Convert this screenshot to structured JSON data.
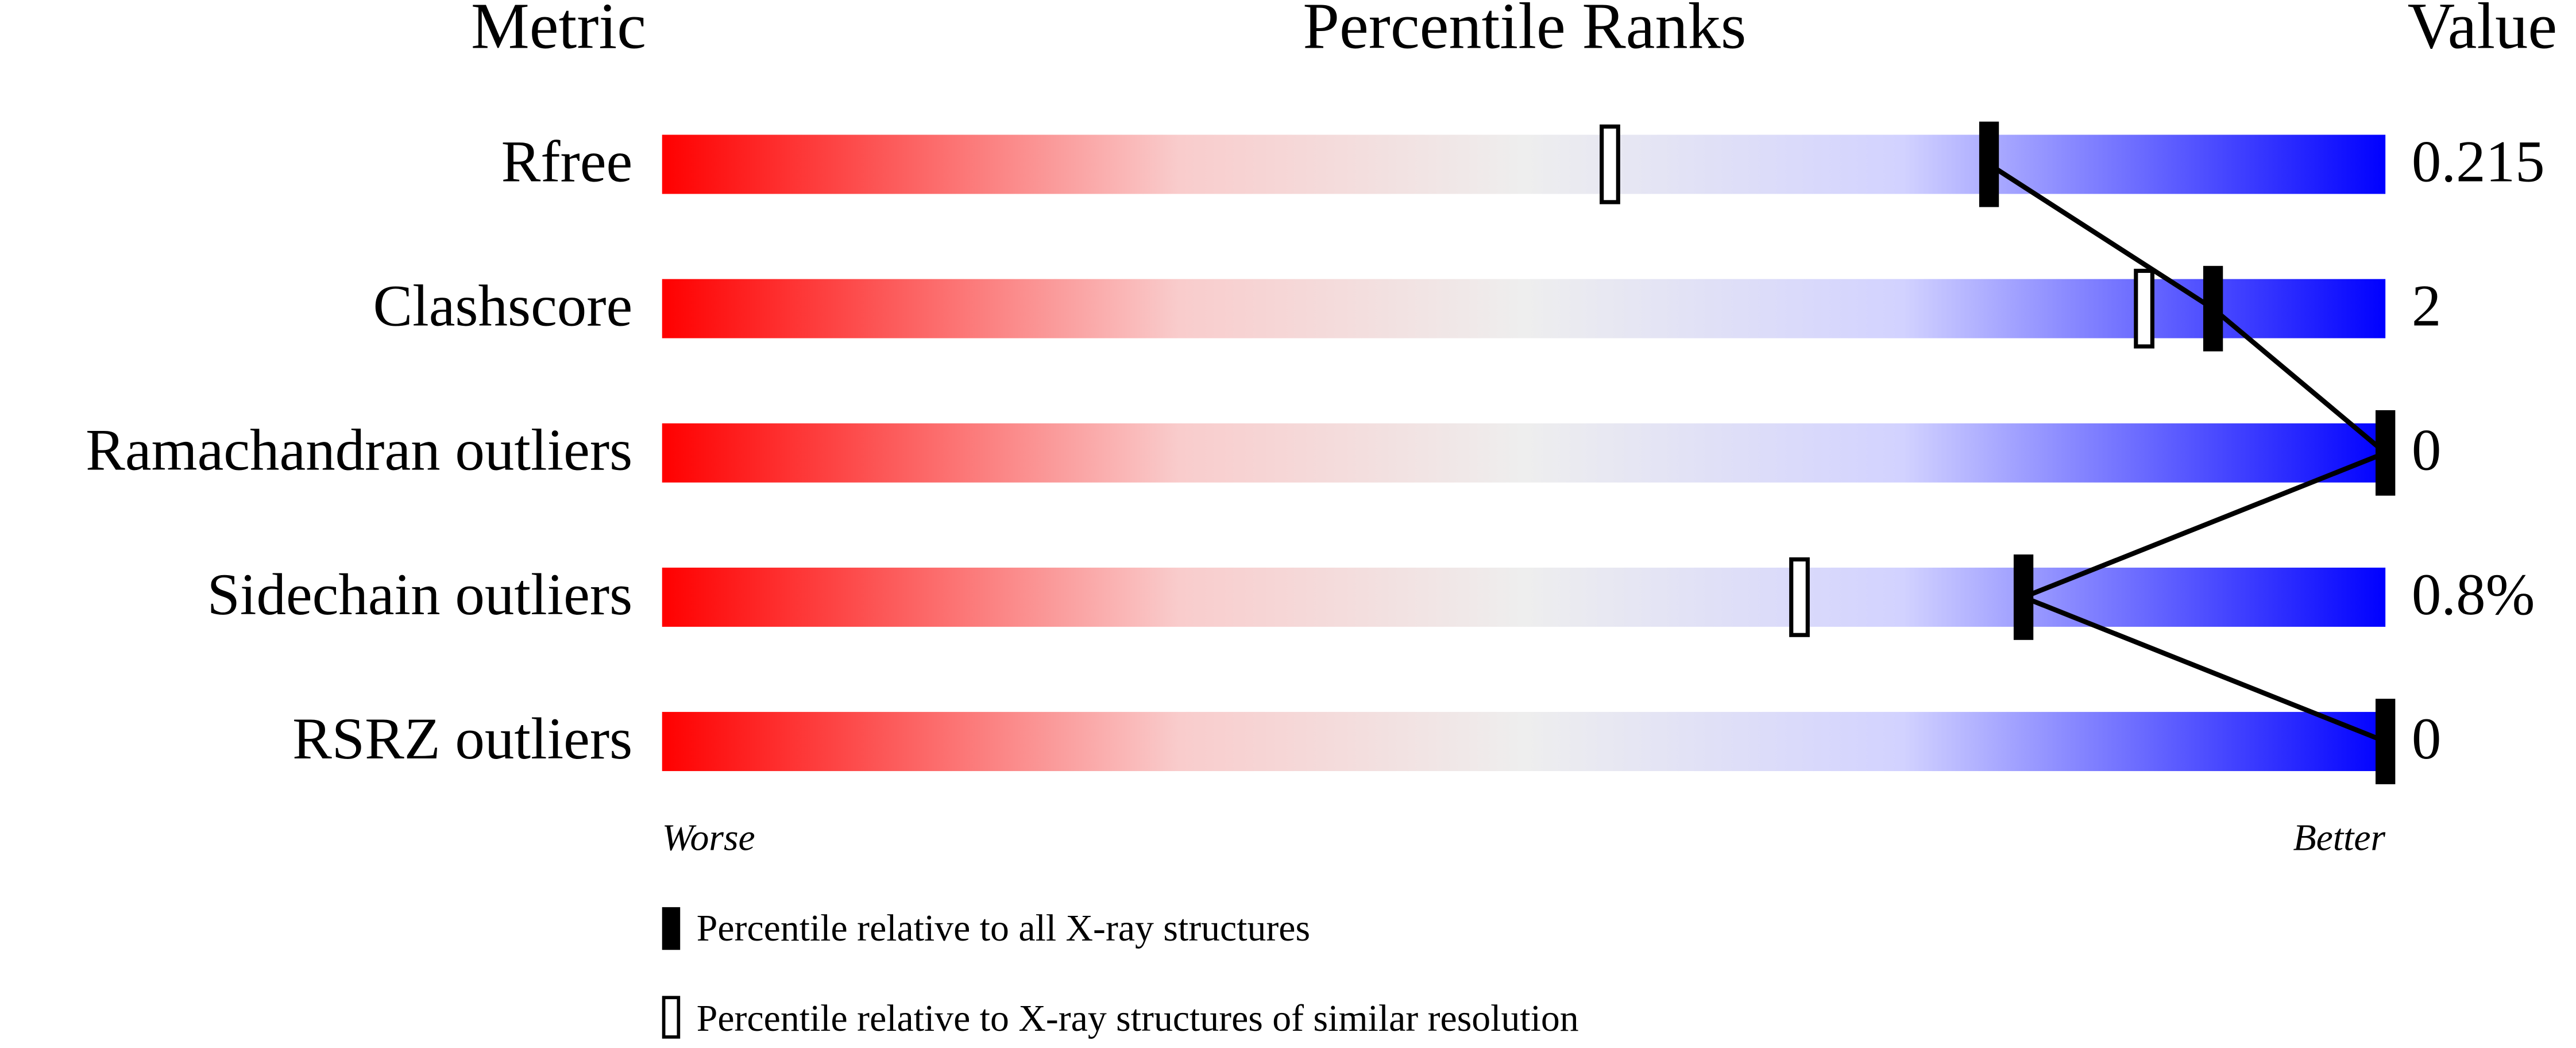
{
  "chart_data": {
    "type": "slider",
    "headers": {
      "metric": "Metric",
      "percentile": "Percentile Ranks",
      "value": "Value"
    },
    "categories": [
      "Rfree",
      "Clashscore",
      "Ramachandran outliers",
      "Sidechain outliers",
      "RSRZ outliers"
    ],
    "metric_values": [
      "0.215",
      "2",
      "0",
      "0.8%",
      "0"
    ],
    "series": [
      {
        "name": "Percentile relative to all X-ray structures",
        "style": "filled",
        "color": "#000000",
        "values": [
          77,
          90,
          100,
          79,
          100
        ]
      },
      {
        "name": "Percentile relative to X-ray structures of similar resolution",
        "style": "open",
        "color": "#000000",
        "values": [
          55,
          86,
          null,
          66,
          null
        ]
      }
    ],
    "xlim": [
      0,
      100
    ],
    "end_labels": {
      "low": "Worse",
      "high": "Better"
    }
  }
}
